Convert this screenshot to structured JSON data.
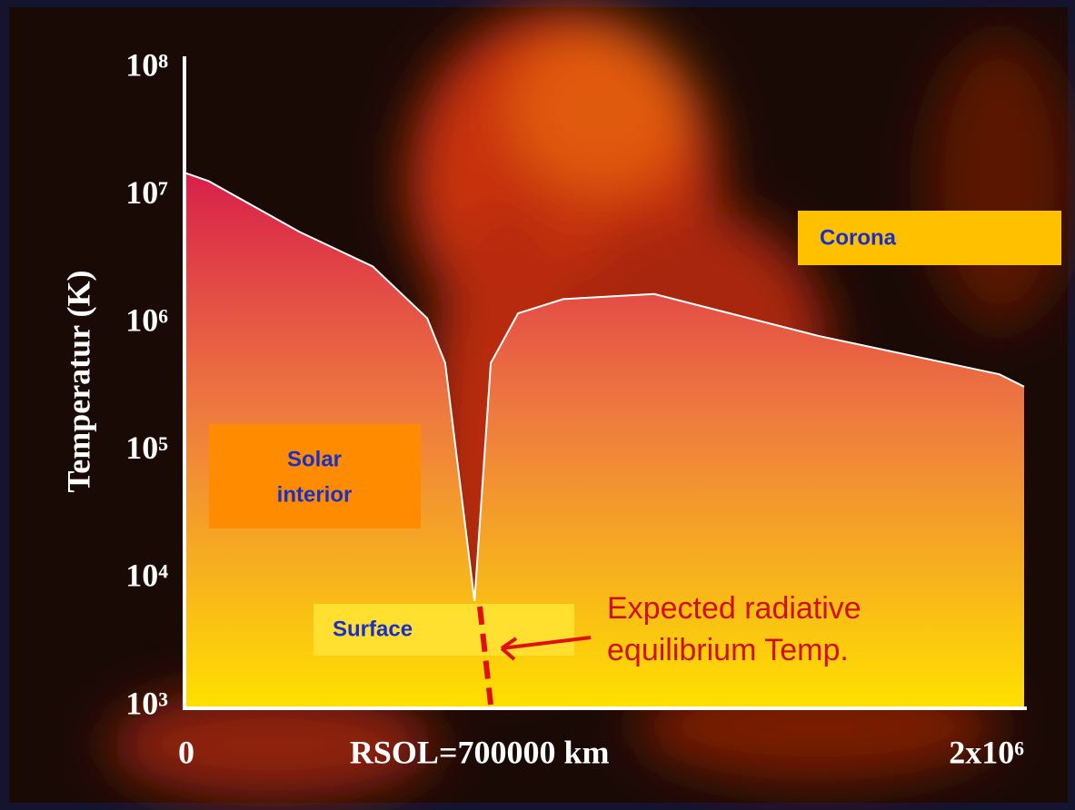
{
  "chart_data": {
    "type": "area",
    "y_label": "Temperatur (K)",
    "x": [
      0,
      54000,
      271000,
      445000,
      575000,
      618000,
      688000,
      727000,
      792000,
      900000,
      1117000,
      1508000,
      1941000,
      2000000
    ],
    "values": [
      15000000,
      13000000,
      5200000,
      2800000,
      1100000,
      490000,
      6700,
      490000,
      1200000,
      1550000,
      1700000,
      800000,
      400000,
      320000
    ],
    "xlim": [
      0,
      2000000
    ],
    "xticks": [
      0,
      {
        "value": 700000,
        "label": "RSOL=700000 km"
      },
      {
        "value": 2000000,
        "label": "2x10⁶"
      }
    ],
    "ylim": [
      1000,
      100000000
    ],
    "yticks": [
      {
        "value": 1000,
        "label": "10³"
      },
      {
        "value": 10000,
        "label": "10⁴"
      },
      {
        "value": 100000,
        "label": "10⁵"
      },
      {
        "value": 1000000,
        "label": "10⁶"
      },
      {
        "value": 10000000,
        "label": "10⁷"
      },
      {
        "value": 100000000,
        "label": "10⁸"
      }
    ],
    "log_y": true,
    "annotations": {
      "corona": "Corona",
      "interior": [
        "Solar",
        "interior"
      ],
      "surface": "Surface",
      "expected": [
        "Expected radiative",
        "equilibrium Temp."
      ]
    }
  }
}
